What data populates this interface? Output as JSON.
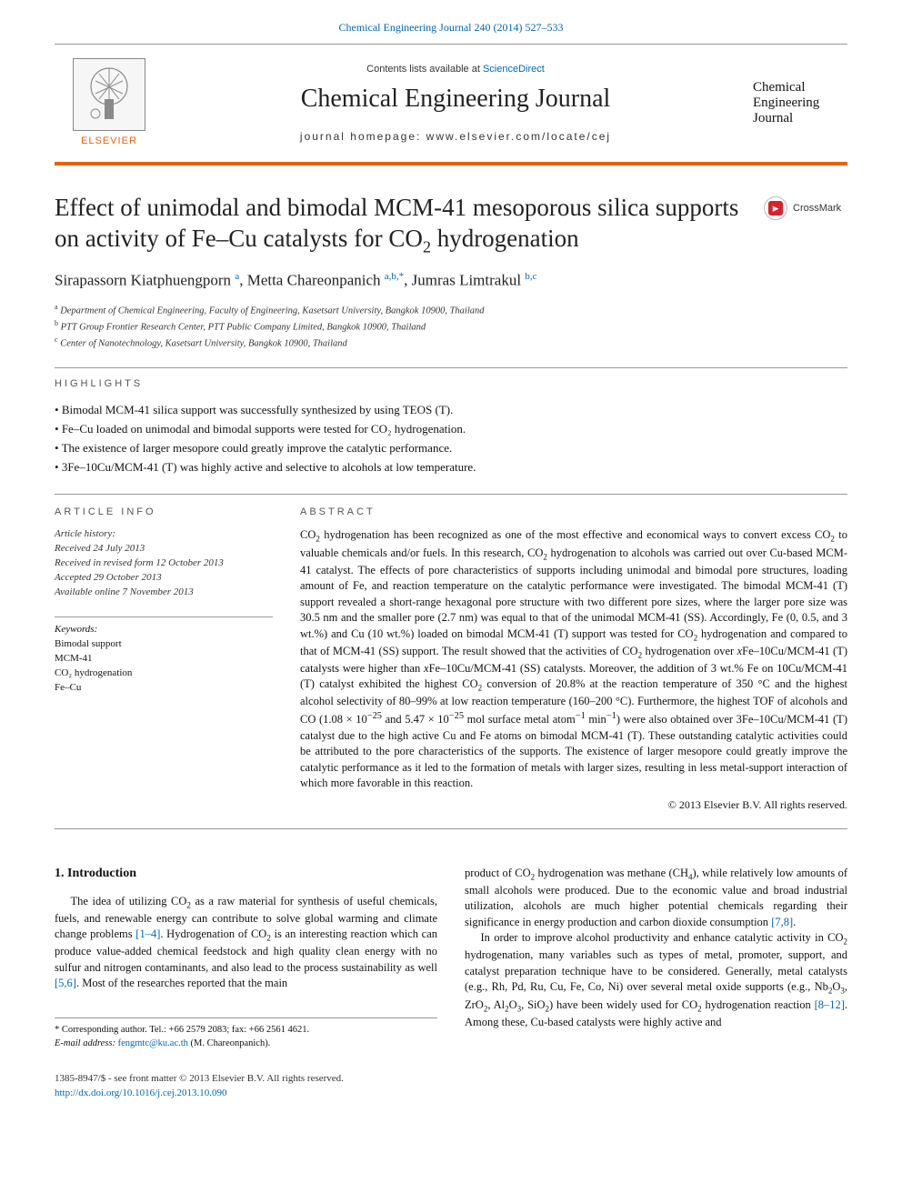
{
  "colors": {
    "accent_orange": "#e8620c",
    "link_blue": "#0066b3",
    "crossmark_red": "#d8232a",
    "text": "#111111",
    "rule_gray": "#999999",
    "background": "#ffffff"
  },
  "top_link": "Chemical Engineering Journal 240 (2014) 527–533",
  "header": {
    "contents_prefix": "Contents lists available at ",
    "contents_link": "ScienceDirect",
    "journal_name": "Chemical Engineering Journal",
    "homepage_label": "journal homepage: www.elsevier.com/locate/cej",
    "publisher_name": "ELSEVIER",
    "cover_line1": "Chemical",
    "cover_line2": "Engineering",
    "cover_line3": "Journal"
  },
  "crossmark_label": "CrossMark",
  "article": {
    "title_html": "Effect of unimodal and bimodal MCM-41 mesoporous silica supports on activity of Fe–Cu catalysts for CO<sub>2</sub> hydrogenation",
    "authors_html": "Sirapassorn Kiatphuengporn <span class=\"sup\">a</span>, Metta Chareonpanich <span class=\"sup\">a,b,*</span>, Jumras Limtrakul <span class=\"sup\">b,c</span>",
    "affiliations": [
      {
        "sup": "a",
        "text": "Department of Chemical Engineering, Faculty of Engineering, Kasetsart University, Bangkok 10900, Thailand"
      },
      {
        "sup": "b",
        "text": "PTT Group Frontier Research Center, PTT Public Company Limited, Bangkok 10900, Thailand"
      },
      {
        "sup": "c",
        "text": "Center of Nanotechnology, Kasetsart University, Bangkok 10900, Thailand"
      }
    ]
  },
  "highlights_label": "HIGHLIGHTS",
  "highlights": [
    "Bimodal MCM-41 silica support was successfully synthesized by using TEOS (T).",
    "Fe–Cu loaded on unimodal and bimodal supports were tested for CO₂ hydrogenation.",
    "The existence of larger mesopore could greatly improve the catalytic performance.",
    "3Fe–10Cu/MCM-41 (T) was highly active and selective to alcohols at low temperature."
  ],
  "article_info": {
    "label": "ARTICLE INFO",
    "history_head": "Article history:",
    "received": "Received 24 July 2013",
    "revised": "Received in revised form 12 October 2013",
    "accepted": "Accepted 29 October 2013",
    "online": "Available online 7 November 2013",
    "keywords_head": "Keywords:",
    "keywords": [
      "Bimodal support",
      "MCM-41",
      "CO₂ hydrogenation",
      "Fe–Cu"
    ]
  },
  "abstract": {
    "label": "ABSTRACT",
    "text_html": "CO<sub>2</sub> hydrogenation has been recognized as one of the most effective and economical ways to convert excess CO<sub>2</sub> to valuable chemicals and/or fuels. In this research, CO<sub>2</sub> hydrogenation to alcohols was carried out over Cu-based MCM-41 catalyst. The effects of pore characteristics of supports including unimodal and bimodal pore structures, loading amount of Fe, and reaction temperature on the catalytic performance were investigated. The bimodal MCM-41 (T) support revealed a short-range hexagonal pore structure with two different pore sizes, where the larger pore size was 30.5 nm and the smaller pore (2.7 nm) was equal to that of the unimodal MCM-41 (SS). Accordingly, Fe (0, 0.5, and 3 wt.%) and Cu (10 wt.%) loaded on bimodal MCM-41 (T) support was tested for CO<sub>2</sub> hydrogenation and compared to that of MCM-41 (SS) support. The result showed that the activities of CO<sub>2</sub> hydrogenation over <i>x</i>Fe–10Cu/MCM-41 (T) catalysts were higher than <i>x</i>Fe–10Cu/MCM-41 (SS) catalysts. Moreover, the addition of 3 wt.% Fe on 10Cu/MCM-41 (T) catalyst exhibited the highest CO<sub>2</sub> conversion of 20.8% at the reaction temperature of 350 °C and the highest alcohol selectivity of 80–99% at low reaction temperature (160–200 °C). Furthermore, the highest TOF of alcohols and CO (1.08 × 10<sup>−25</sup> and 5.47 × 10<sup>−25</sup> mol surface metal atom<sup>−1</sup> min<sup>−1</sup>) were also obtained over 3Fe–10Cu/MCM-41 (T) catalyst due to the high active Cu and Fe atoms on bimodal MCM-41 (T). These outstanding catalytic activities could be attributed to the pore characteristics of the supports. The existence of larger mesopore could greatly improve the catalytic performance as it led to the formation of metals with larger sizes, resulting in less metal-support interaction of which more favorable in this reaction.",
    "copyright": "© 2013 Elsevier B.V. All rights reserved."
  },
  "intro": {
    "head": "1. Introduction",
    "left_html": "<p>The idea of utilizing CO<sub>2</sub> as a raw material for synthesis of useful chemicals, fuels, and renewable energy can contribute to solve global warming and climate change problems <span class=\"ref\">[1–4]</span>. Hydrogenation of CO<sub>2</sub> is an interesting reaction which can produce value-added chemical feedstock and high quality clean energy with no sulfur and nitrogen contaminants, and also lead to the process sustainability as well <span class=\"ref\">[5,6]</span>. Most of the researches reported that the main</p>",
    "right_html": "<p style=\"text-indent:0\">product of CO<sub>2</sub> hydrogenation was methane (CH<sub>4</sub>), while relatively low amounts of small alcohols were produced. Due to the economic value and broad industrial utilization, alcohols are much higher potential chemicals regarding their significance in energy production and carbon dioxide consumption <span class=\"ref\">[7,8]</span>.</p><p>In order to improve alcohol productivity and enhance catalytic activity in CO<sub>2</sub> hydrogenation, many variables such as types of metal, promoter, support, and catalyst preparation technique have to be considered. Generally, metal catalysts (e.g., Rh, Pd, Ru, Cu, Fe, Co, Ni) over several metal oxide supports (e.g., Nb<sub>2</sub>O<sub>3</sub>, ZrO<sub>2</sub>, Al<sub>2</sub>O<sub>3</sub>, SiO<sub>2</sub>) have been widely used for CO<sub>2</sub> hydrogenation reaction <span class=\"ref\">[8–12]</span>. Among these, Cu-based catalysts were highly active and</p>"
  },
  "footnote": {
    "corr": "* Corresponding author. Tel.: +66 2579 2083; fax: +66 2561 4621.",
    "email_label": "E-mail address: ",
    "email": "fengmtc@ku.ac.th",
    "email_tail": " (M. Chareonpanich)."
  },
  "footer": {
    "issn": "1385-8947/$ - see front matter © 2013 Elsevier B.V. All rights reserved.",
    "doi": "http://dx.doi.org/10.1016/j.cej.2013.10.090"
  }
}
